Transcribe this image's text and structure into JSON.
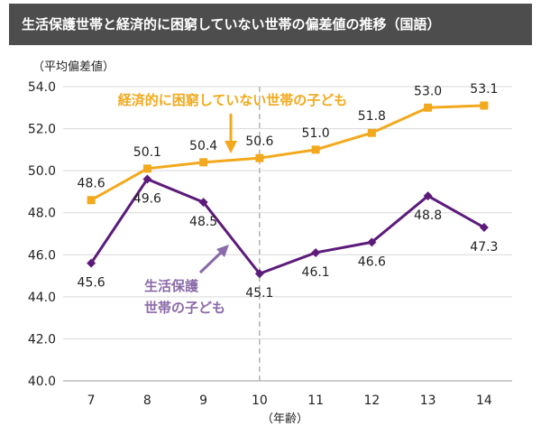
{
  "chart_data": {
    "type": "line",
    "title": "生活保護世帯と経済的に困窮していない世帯の偏差値の推移（国語）",
    "ylabel": "（平均偏差値）",
    "xlabel": "（年齢）",
    "x": [
      7,
      8,
      9,
      10,
      11,
      12,
      13,
      14
    ],
    "x_tick_labels": [
      "7",
      "8",
      "9",
      "10",
      "11",
      "12",
      "13",
      "14"
    ],
    "ylim": [
      40.0,
      54.0
    ],
    "yticks": [
      40.0,
      42.0,
      44.0,
      46.0,
      48.0,
      50.0,
      52.0,
      54.0
    ],
    "y_tick_labels": [
      "40.0",
      "42.0",
      "44.0",
      "46.0",
      "48.0",
      "50.0",
      "52.0",
      "54.0"
    ],
    "grid": true,
    "reference_line_x": 10,
    "series": [
      {
        "name": "経済的に困窮していない世帯の子ども",
        "color": "#f2a91d",
        "marker": "square",
        "values": [
          48.6,
          50.1,
          50.4,
          50.6,
          51.0,
          51.8,
          53.0,
          53.1
        ],
        "labels": [
          "48.6",
          "50.1",
          "50.4",
          "50.6",
          "51.0",
          "51.8",
          "53.0",
          "53.1"
        ]
      },
      {
        "name": "生活保護世帯の子ども",
        "name_lines": [
          "生活保護",
          "世帯の子ども"
        ],
        "color": "#5c1a7a",
        "annotation_color": "#8a6aa8",
        "marker": "diamond",
        "values": [
          45.6,
          49.6,
          48.5,
          45.1,
          46.1,
          46.6,
          48.8,
          47.3
        ],
        "labels": [
          "45.6",
          "49.6",
          "48.5",
          "45.1",
          "46.1",
          "46.6",
          "48.8",
          "47.3"
        ]
      }
    ]
  }
}
